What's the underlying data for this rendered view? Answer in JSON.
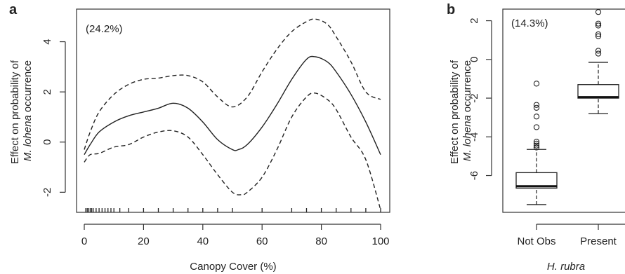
{
  "chart_data": [
    {
      "panel": "a",
      "type": "line",
      "annotation": "(24.2%)",
      "xlabel": "Canopy Cover (%)",
      "ylabel_line1": "Effect on probability of",
      "ylabel_species": "M. lohena",
      "ylabel_suffix": " occurrence",
      "xlim": [
        0,
        100
      ],
      "ylim": [
        -2.8,
        5.3
      ],
      "xticks": [
        0,
        20,
        40,
        60,
        80,
        100
      ],
      "yticks": [
        -2,
        0,
        2,
        4
      ],
      "grid": false,
      "series": [
        {
          "style": "solid",
          "x": [
            0,
            2,
            5,
            10,
            15,
            20,
            25,
            30,
            35,
            40,
            45,
            50,
            52,
            55,
            60,
            65,
            70,
            75,
            78,
            82,
            85,
            90,
            95,
            100
          ],
          "y": [
            -0.5,
            -0.1,
            0.4,
            0.8,
            1.05,
            1.2,
            1.35,
            1.55,
            1.35,
            0.8,
            0.1,
            -0.3,
            -0.3,
            -0.1,
            0.6,
            1.5,
            2.5,
            3.3,
            3.4,
            3.2,
            2.8,
            1.9,
            0.8,
            -0.5
          ]
        },
        {
          "style": "dashed",
          "x": [
            0,
            2,
            5,
            10,
            15,
            20,
            25,
            30,
            35,
            40,
            45,
            50,
            55,
            60,
            65,
            70,
            75,
            78,
            82,
            85,
            90,
            95,
            100
          ],
          "y": [
            -0.3,
            0.4,
            1.2,
            1.9,
            2.3,
            2.5,
            2.55,
            2.65,
            2.65,
            2.4,
            1.8,
            1.4,
            1.8,
            2.8,
            3.7,
            4.4,
            4.8,
            4.9,
            4.7,
            4.2,
            3.2,
            2.0,
            1.7
          ]
        },
        {
          "style": "dashed",
          "x": [
            0,
            2,
            5,
            10,
            15,
            20,
            25,
            30,
            35,
            40,
            45,
            50,
            53,
            55,
            60,
            65,
            70,
            75,
            78,
            82,
            85,
            90,
            95,
            100
          ],
          "y": [
            -0.8,
            -0.5,
            -0.45,
            -0.2,
            -0.1,
            0.2,
            0.4,
            0.45,
            0.2,
            -0.5,
            -1.3,
            -2.0,
            -2.1,
            -2.0,
            -1.4,
            -0.3,
            1.0,
            1.8,
            1.95,
            1.7,
            1.3,
            0.2,
            -0.7,
            -2.7
          ]
        }
      ],
      "rug": [
        0.5,
        1,
        1.5,
        2,
        2.5,
        3,
        4,
        5,
        6,
        7,
        8,
        9,
        10,
        12,
        15,
        20,
        25,
        30,
        35,
        40,
        45,
        50,
        60,
        70,
        75,
        80,
        85,
        90,
        95,
        100
      ]
    },
    {
      "panel": "b",
      "type": "box",
      "annotation": "(14.3%)",
      "xlabel": "H. rubra",
      "ylabel_line1": "Effect on probability of",
      "ylabel_species": "M. lohena",
      "ylabel_suffix": " occurrence",
      "ylim": [
        -7.9,
        2.6
      ],
      "yticks": [
        -6,
        -4,
        -2,
        0,
        2
      ],
      "categories": [
        "Not Obs",
        "Present"
      ],
      "boxes": [
        {
          "whisker_low": -7.5,
          "q1": -6.65,
          "median": -6.55,
          "q3": -5.85,
          "whisker_high": -4.65,
          "outliers": [
            -4.55,
            -4.45,
            -4.35,
            -4.25,
            -3.5,
            -2.95,
            -2.5,
            -2.35,
            -1.25
          ]
        },
        {
          "whisker_low": -2.8,
          "q1": -2.0,
          "median": -1.95,
          "q3": -1.3,
          "whisker_high": -0.15,
          "outliers": [
            0.3,
            0.45,
            1.2,
            1.3,
            1.75,
            1.85,
            2.45
          ]
        }
      ]
    }
  ],
  "panels": {
    "a": {
      "letter": "a"
    },
    "b": {
      "letter": "b"
    }
  }
}
